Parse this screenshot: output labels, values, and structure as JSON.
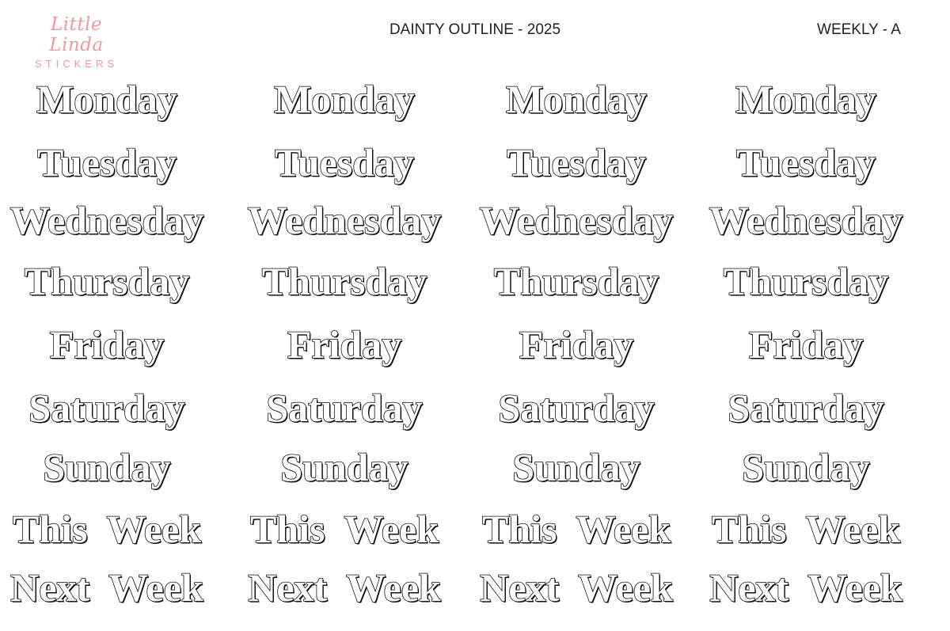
{
  "brand": {
    "script": "Little Linda",
    "sub": "STICKERS",
    "color": "#ec9aa0"
  },
  "header": {
    "title": "DAINTY OUTLINE - 2025",
    "code": "WEEKLY - A"
  },
  "sticker_columns": 4,
  "rows": [
    {
      "label": "Monday"
    },
    {
      "label": "Tuesday"
    },
    {
      "label": "Wednesday"
    },
    {
      "label": "Thursday"
    },
    {
      "label": "Friday"
    },
    {
      "label": "Saturday"
    },
    {
      "label": "Sunday"
    },
    {
      "label": "This  Week"
    },
    {
      "label": "Next  Week"
    }
  ]
}
